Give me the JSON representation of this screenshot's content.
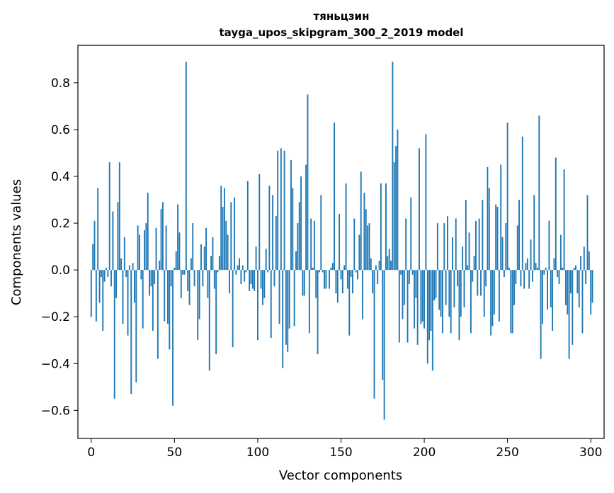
{
  "chart_data": {
    "type": "bar",
    "title": "тяньцзин",
    "subtitle": "tayga_upos_skipgram_300_2_2019 model",
    "xlabel": "Vector components",
    "ylabel": "Components values",
    "xlim": [
      -8,
      308
    ],
    "ylim": [
      -0.72,
      0.96
    ],
    "xticks": [
      0,
      50,
      100,
      150,
      200,
      250,
      300
    ],
    "xtick_labels": [
      "0",
      "50",
      "100",
      "150",
      "200",
      "250",
      "300"
    ],
    "yticks": [
      -0.6,
      -0.4,
      -0.2,
      0.0,
      0.2,
      0.4,
      0.6,
      0.8
    ],
    "ytick_labels": [
      "−0.6",
      "−0.4",
      "−0.2",
      "0.0",
      "0.2",
      "0.4",
      "0.6",
      "0.8"
    ],
    "grid": false,
    "bar_color": "#1f77b4",
    "values": [
      -0.2,
      0.11,
      0.21,
      -0.22,
      0.35,
      -0.14,
      -0.03,
      -0.26,
      -0.05,
      0.01,
      -0.03,
      0.46,
      -0.07,
      0.25,
      -0.55,
      -0.12,
      0.29,
      0.46,
      0.05,
      -0.23,
      0.14,
      -0.03,
      -0.28,
      0.02,
      -0.53,
      0.03,
      -0.14,
      -0.48,
      0.19,
      0.15,
      -0.04,
      -0.25,
      0.17,
      0.2,
      0.33,
      -0.11,
      -0.07,
      -0.26,
      -0.06,
      0.18,
      -0.38,
      0.04,
      0.26,
      0.29,
      -0.22,
      0.19,
      -0.23,
      -0.34,
      -0.07,
      -0.58,
      0.01,
      0.08,
      0.28,
      0.16,
      -0.12,
      -0.02,
      -0.02,
      0.89,
      -0.09,
      -0.15,
      0.05,
      0.2,
      -0.07,
      0.0,
      -0.3,
      -0.21,
      0.11,
      -0.07,
      0.1,
      0.18,
      -0.12,
      -0.43,
      0.06,
      0.14,
      -0.08,
      -0.36,
      -0.01,
      0.06,
      0.36,
      0.27,
      0.35,
      0.21,
      0.15,
      -0.1,
      0.29,
      -0.33,
      0.31,
      -0.02,
      0.02,
      0.05,
      -0.06,
      0.02,
      -0.05,
      -0.01,
      0.38,
      -0.09,
      -0.06,
      -0.08,
      -0.09,
      0.1,
      -0.3,
      0.41,
      -0.08,
      -0.15,
      -0.12,
      0.09,
      -0.01,
      0.36,
      -0.29,
      0.32,
      -0.07,
      0.23,
      0.51,
      -0.23,
      0.52,
      -0.42,
      0.51,
      -0.32,
      -0.35,
      -0.25,
      0.47,
      0.35,
      -0.24,
      0.08,
      0.2,
      0.29,
      0.4,
      -0.11,
      -0.11,
      0.45,
      0.75,
      -0.27,
      0.22,
      0.01,
      0.21,
      -0.12,
      -0.36,
      -0.01,
      0.32,
      -0.01,
      -0.08,
      -0.08,
      0.0,
      -0.08,
      0.01,
      0.03,
      0.63,
      -0.1,
      -0.14,
      0.24,
      -0.04,
      -0.1,
      0.02,
      0.37,
      -0.08,
      -0.28,
      -0.03,
      -0.1,
      0.22,
      -0.01,
      -0.04,
      0.15,
      0.42,
      -0.21,
      0.33,
      0.26,
      0.19,
      0.2,
      0.05,
      -0.1,
      -0.55,
      0.02,
      -0.06,
      0.04,
      0.37,
      -0.47,
      -0.64,
      0.37,
      0.06,
      0.09,
      0.04,
      0.89,
      0.46,
      0.53,
      0.6,
      -0.31,
      -0.02,
      -0.21,
      -0.15,
      0.22,
      -0.31,
      -0.06,
      0.31,
      -0.02,
      -0.25,
      -0.12,
      -0.32,
      0.52,
      -0.23,
      -0.22,
      -0.25,
      0.58,
      -0.4,
      -0.3,
      -0.26,
      -0.43,
      -0.13,
      -0.12,
      0.2,
      -0.17,
      -0.2,
      -0.27,
      0.2,
      -0.15,
      0.23,
      -0.2,
      -0.27,
      0.14,
      -0.16,
      0.22,
      -0.07,
      -0.3,
      -0.2,
      0.1,
      -0.16,
      0.3,
      0.02,
      0.16,
      -0.27,
      -0.05,
      0.06,
      0.21,
      -0.11,
      0.22,
      -0.11,
      0.3,
      -0.2,
      -0.07,
      0.44,
      0.35,
      -0.28,
      -0.24,
      -0.19,
      0.28,
      0.27,
      -0.22,
      0.45,
      0.14,
      -0.03,
      0.2,
      0.63,
      0.01,
      -0.27,
      -0.27,
      -0.15,
      -0.06,
      0.19,
      0.3,
      -0.07,
      0.57,
      -0.08,
      0.03,
      0.05,
      -0.08,
      0.13,
      -0.05,
      0.32,
      0.03,
      0.01,
      0.66,
      -0.38,
      -0.23,
      -0.02,
      0.01,
      -0.17,
      0.21,
      -0.16,
      -0.26,
      0.05,
      0.48,
      -0.03,
      -0.06,
      0.15,
      0.01,
      0.43,
      -0.15,
      -0.19,
      -0.38,
      -0.1,
      -0.32,
      0.01,
      0.02,
      -0.1,
      -0.16,
      0.06,
      -0.27,
      0.1,
      -0.06,
      0.32,
      0.08,
      -0.19,
      -0.14
    ]
  }
}
